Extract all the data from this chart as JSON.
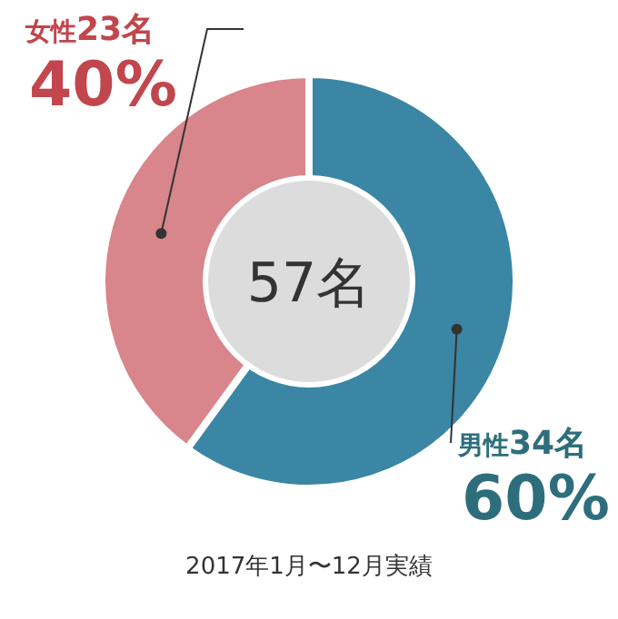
{
  "chart_data": {
    "type": "donut",
    "categories": [
      "男性34名",
      "女性23名"
    ],
    "values": [
      60,
      40
    ],
    "value_labels": [
      "60%",
      "40%"
    ],
    "colors": [
      "#3a86a4",
      "#d8858b"
    ],
    "annotations": [
      "57名",
      "2017年1月〜12月実績"
    ]
  }
}
